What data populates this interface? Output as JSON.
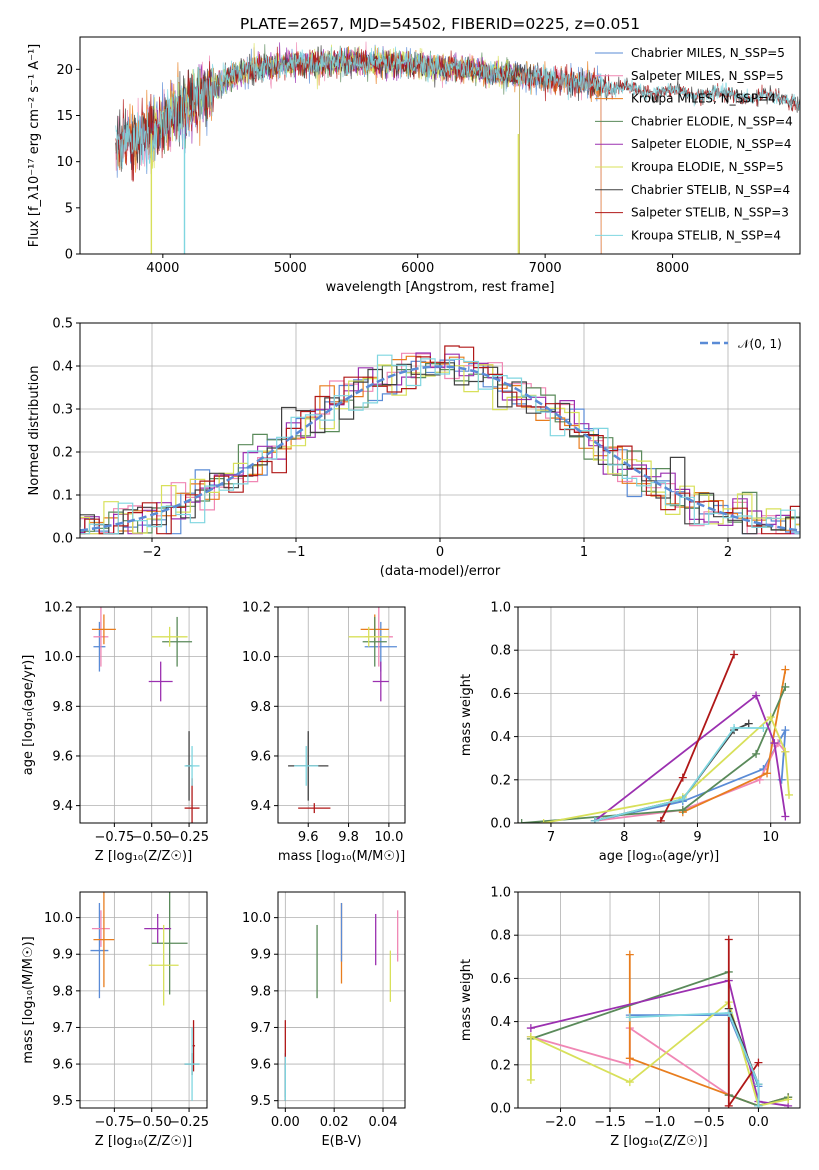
{
  "chart_data": [
    {
      "id": "spectrum",
      "type": "line",
      "title": "PLATE=2657, MJD=54502, FIBERID=0225, z=0.051",
      "xlabel": "wavelength [Angstrom, rest frame]",
      "ylabel": "Flux [f_λ10⁻¹⁷ erg cm⁻² s⁻¹ A⁻¹]",
      "xlim": [
        3350,
        9000
      ],
      "ylim": [
        0,
        23.5
      ],
      "xticks": [
        4000,
        5000,
        6000,
        7000,
        8000
      ],
      "yticks": [
        0,
        5,
        10,
        15,
        20
      ],
      "grid": false,
      "legend_position": "upper-right",
      "series": [
        {
          "name": "Chabrier MILES, N_SSP=5",
          "color": "#5a8bd6",
          "range": [
            3630,
            7440
          ]
        },
        {
          "name": "Salpeter MILES, N_SSP=5",
          "color": "#f087b4",
          "range": [
            3630,
            7440
          ]
        },
        {
          "name": "Kroupa MILES, N_SSP=4",
          "color": "#e87d1e",
          "range": [
            3630,
            7440
          ]
        },
        {
          "name": "Chabrier ELODIE, N_SSP=4",
          "color": "#5a8a5a",
          "range": [
            3900,
            6800
          ]
        },
        {
          "name": "Salpeter ELODIE, N_SSP=4",
          "color": "#9b30b0",
          "range": [
            3900,
            6800
          ]
        },
        {
          "name": "Kroupa ELODIE, N_SSP=5",
          "color": "#d8e05a",
          "range": [
            3900,
            6800
          ]
        },
        {
          "name": "Chabrier STELIB, N_SSP=4",
          "color": "#404040",
          "range": [
            3630,
            9000
          ]
        },
        {
          "name": "Salpeter STELIB, N_SSP=3",
          "color": "#b01818",
          "range": [
            3630,
            9000
          ]
        },
        {
          "name": "Kroupa STELIB, N_SSP=4",
          "color": "#7fd6e0",
          "range": [
            3630,
            9000
          ]
        }
      ],
      "continuum": [
        [
          3630,
          12
        ],
        [
          3800,
          12.5
        ],
        [
          3950,
          13.5
        ],
        [
          4100,
          15.5
        ],
        [
          4300,
          17
        ],
        [
          4500,
          19
        ],
        [
          4700,
          20
        ],
        [
          5000,
          20.6
        ],
        [
          5500,
          20.8
        ],
        [
          6000,
          20.5
        ],
        [
          6500,
          19.8
        ],
        [
          7000,
          19
        ],
        [
          7500,
          18
        ],
        [
          8000,
          17.5
        ],
        [
          8500,
          17.2
        ],
        [
          9000,
          16.5
        ]
      ]
    },
    {
      "id": "residuals",
      "type": "histogram",
      "xlabel": "(data-model)/error",
      "ylabel": "Normed distribution",
      "xlim": [
        -2.5,
        2.5
      ],
      "ylim": [
        0,
        0.5
      ],
      "xticks": [
        -2,
        -1,
        0,
        1,
        2
      ],
      "yticks": [
        0.0,
        0.1,
        0.2,
        0.3,
        0.4,
        0.5
      ],
      "grid": true,
      "legend_position": "upper-right",
      "reference": {
        "name": "𝒩(0, 1)",
        "color": "#5a8bd6"
      },
      "bin_width": 0.1
    },
    {
      "id": "age-vs-Z",
      "type": "scatter",
      "xlabel": "Z [log₁₀(Z/Z☉)]",
      "ylabel": "age  [log₁₀(age/yr)]",
      "xlim": [
        -0.98,
        -0.13
      ],
      "ylim": [
        9.33,
        10.2
      ],
      "xticks": [
        -0.75,
        -0.5,
        -0.25
      ],
      "xticklabels": [
        "−0.75",
        "−0.50",
        "−0.25"
      ],
      "yticks": [
        9.4,
        9.6,
        9.8,
        10.0,
        10.2
      ],
      "grid": true,
      "points": [
        {
          "x": -0.85,
          "y": 10.04,
          "xerr": 0.04,
          "yerr": 0.1,
          "color": "#5a8bd6"
        },
        {
          "x": -0.84,
          "y": 10.08,
          "xerr": 0.05,
          "yerr": 0.12,
          "color": "#f087b4"
        },
        {
          "x": -0.82,
          "y": 10.11,
          "xerr": 0.08,
          "yerr": 0.06,
          "color": "#e87d1e"
        },
        {
          "x": -0.33,
          "y": 10.06,
          "xerr": 0.1,
          "yerr": 0.1,
          "color": "#5a8a5a"
        },
        {
          "x": -0.44,
          "y": 9.9,
          "xerr": 0.08,
          "yerr": 0.08,
          "color": "#9b30b0"
        },
        {
          "x": -0.38,
          "y": 10.08,
          "xerr": 0.12,
          "yerr": 0.04,
          "color": "#d8e05a"
        },
        {
          "x": -0.25,
          "y": 9.56,
          "xerr": 0.02,
          "yerr": 0.14,
          "color": "#404040"
        },
        {
          "x": -0.23,
          "y": 9.39,
          "xerr": 0.05,
          "yerr": 0.12,
          "color": "#b01818"
        },
        {
          "x": -0.23,
          "y": 9.56,
          "xerr": 0.05,
          "yerr": 0.08,
          "color": "#7fd6e0"
        }
      ]
    },
    {
      "id": "age-vs-mass",
      "type": "scatter",
      "xlabel": "mass [log₁₀(M/M☉)]",
      "ylabel": "",
      "xlim": [
        9.45,
        10.08
      ],
      "ylim": [
        9.33,
        10.2
      ],
      "xticks": [
        9.6,
        9.8,
        10.0
      ],
      "xticklabels": [
        "9.6",
        "9.8",
        "10.0"
      ],
      "yticks": [
        9.4,
        9.6,
        9.8,
        10.0,
        10.2
      ],
      "grid": true,
      "points": [
        {
          "x": 9.96,
          "y": 10.04,
          "xerr": 0.08,
          "yerr": 0.1,
          "color": "#5a8bd6"
        },
        {
          "x": 9.95,
          "y": 10.08,
          "xerr": 0.07,
          "yerr": 0.12,
          "color": "#f087b4"
        },
        {
          "x": 9.93,
          "y": 10.11,
          "xerr": 0.07,
          "yerr": 0.06,
          "color": "#e87d1e"
        },
        {
          "x": 9.93,
          "y": 10.06,
          "xerr": 0.06,
          "yerr": 0.1,
          "color": "#5a8a5a"
        },
        {
          "x": 9.96,
          "y": 9.9,
          "xerr": 0.04,
          "yerr": 0.08,
          "color": "#9b30b0"
        },
        {
          "x": 9.9,
          "y": 10.08,
          "xerr": 0.1,
          "yerr": 0.04,
          "color": "#d8e05a"
        },
        {
          "x": 9.6,
          "y": 9.56,
          "xerr": 0.1,
          "yerr": 0.14,
          "color": "#404040"
        },
        {
          "x": 9.63,
          "y": 9.39,
          "xerr": 0.08,
          "yerr": 0.02,
          "color": "#b01818"
        },
        {
          "x": 9.59,
          "y": 9.56,
          "xerr": 0.06,
          "yerr": 0.08,
          "color": "#7fd6e0"
        }
      ]
    },
    {
      "id": "weight-vs-age",
      "type": "line",
      "xlabel": "age  [log₁₀(age/yr)]",
      "ylabel": "mass weight",
      "xlim": [
        6.55,
        10.4
      ],
      "ylim": [
        0,
        1.0
      ],
      "xticks": [
        7,
        8,
        9,
        10
      ],
      "yticks": [
        0.0,
        0.2,
        0.4,
        0.6,
        0.8,
        1.0
      ],
      "grid": true,
      "series": [
        {
          "color": "#5a8bd6",
          "points": [
            [
              7.6,
              0.01
            ],
            [
              8.8,
              0.1
            ],
            [
              9.9,
              0.25
            ],
            [
              10.2,
              0.43
            ],
            [
              10.15,
              0.2
            ]
          ]
        },
        {
          "color": "#f087b4",
          "points": [
            [
              7.6,
              0.01
            ],
            [
              8.8,
              0.06
            ],
            [
              9.85,
              0.2
            ],
            [
              10.1,
              0.37
            ],
            [
              10.2,
              0.33
            ]
          ]
        },
        {
          "color": "#e87d1e",
          "points": [
            [
              8.8,
              0.05
            ],
            [
              9.95,
              0.23
            ],
            [
              10.2,
              0.71
            ]
          ]
        },
        {
          "color": "#5a8a5a",
          "points": [
            [
              6.6,
              0.0
            ],
            [
              8.8,
              0.06
            ],
            [
              9.8,
              0.32
            ],
            [
              10.2,
              0.63
            ]
          ]
        },
        {
          "color": "#9b30b0",
          "points": [
            [
              7.6,
              0.01
            ],
            [
              9.8,
              0.59
            ],
            [
              10.05,
              0.37
            ],
            [
              10.2,
              0.03
            ]
          ]
        },
        {
          "color": "#d8e05a",
          "points": [
            [
              6.9,
              0.0
            ],
            [
              8.8,
              0.12
            ],
            [
              10.0,
              0.49
            ],
            [
              10.2,
              0.33
            ],
            [
              10.25,
              0.13
            ]
          ]
        },
        {
          "color": "#404040",
          "points": [
            [
              7.6,
              0.01
            ],
            [
              8.8,
              0.11
            ],
            [
              9.5,
              0.43
            ],
            [
              9.7,
              0.46
            ]
          ]
        },
        {
          "color": "#b01818",
          "points": [
            [
              8.5,
              0.01
            ],
            [
              8.8,
              0.21
            ],
            [
              9.5,
              0.78
            ]
          ]
        },
        {
          "color": "#7fd6e0",
          "points": [
            [
              7.6,
              0.01
            ],
            [
              8.8,
              0.11
            ],
            [
              9.5,
              0.44
            ],
            [
              9.9,
              0.44
            ]
          ]
        }
      ]
    },
    {
      "id": "mass-vs-Z",
      "type": "scatter",
      "xlabel": "Z [log₁₀(Z/Z☉)]",
      "ylabel": "mass [log₁₀(M/M☉)]",
      "xlim": [
        -0.98,
        -0.13
      ],
      "ylim": [
        9.48,
        10.07
      ],
      "xticks": [
        -0.75,
        -0.5,
        -0.25
      ],
      "xticklabels": [
        "−0.75",
        "−0.50",
        "−0.25"
      ],
      "yticks": [
        9.5,
        9.6,
        9.7,
        9.8,
        9.9,
        10.0
      ],
      "grid": true,
      "points": [
        {
          "x": -0.85,
          "y": 9.91,
          "xerr": 0.06,
          "yerr": 0.13,
          "color": "#5a8bd6"
        },
        {
          "x": -0.84,
          "y": 9.97,
          "xerr": 0.06,
          "yerr": 0.05,
          "color": "#f087b4"
        },
        {
          "x": -0.82,
          "y": 9.94,
          "xerr": 0.07,
          "yerr": 0.13,
          "color": "#e87d1e"
        },
        {
          "x": -0.38,
          "y": 9.93,
          "xerr": 0.12,
          "yerr": 0.14,
          "color": "#5a8a5a"
        },
        {
          "x": -0.46,
          "y": 9.97,
          "xerr": 0.09,
          "yerr": 0.04,
          "color": "#9b30b0"
        },
        {
          "x": -0.42,
          "y": 9.87,
          "xerr": 0.1,
          "yerr": 0.11,
          "color": "#d8e05a"
        },
        {
          "x": -0.23,
          "y": 9.6,
          "xerr": 0.05,
          "yerr": 0.03,
          "color": "#404040"
        },
        {
          "x": -0.22,
          "y": 9.65,
          "xerr": 0.01,
          "yerr": 0.07,
          "color": "#b01818"
        },
        {
          "x": -0.23,
          "y": 9.6,
          "xerr": 0.05,
          "yerr": 0.1,
          "color": "#7fd6e0"
        }
      ]
    },
    {
      "id": "mass-vs-EBV",
      "type": "scatter",
      "xlabel": "E(B-V)",
      "ylabel": "",
      "xlim": [
        -0.003,
        0.049
      ],
      "ylim": [
        9.48,
        10.07
      ],
      "xticks": [
        0.0,
        0.02,
        0.04
      ],
      "xticklabels": [
        "0.00",
        "0.02",
        "0.04"
      ],
      "yticks": [
        9.5,
        9.6,
        9.7,
        9.8,
        9.9,
        10.0
      ],
      "grid": true,
      "points": [
        {
          "x": 0.0,
          "y": 9.57,
          "xerr": 0,
          "yerr": 0.06,
          "color": "#5a8bd6"
        },
        {
          "x": 0.046,
          "y": 9.95,
          "xerr": 0,
          "yerr": 0.07,
          "color": "#f087b4"
        },
        {
          "x": 0.023,
          "y": 9.93,
          "xerr": 0,
          "yerr": 0.11,
          "color": "#e87d1e"
        },
        {
          "x": 0.013,
          "y": 9.88,
          "xerr": 0,
          "yerr": 0.1,
          "color": "#5a8a5a"
        },
        {
          "x": 0.037,
          "y": 9.94,
          "xerr": 0,
          "yerr": 0.07,
          "color": "#9b30b0"
        },
        {
          "x": 0.043,
          "y": 9.84,
          "xerr": 0,
          "yerr": 0.07,
          "color": "#d8e05a"
        },
        {
          "x": 0.0,
          "y": 9.55,
          "xerr": 0,
          "yerr": 0.05,
          "color": "#404040"
        },
        {
          "x": 0.0,
          "y": 9.66,
          "xerr": 0,
          "yerr": 0.06,
          "color": "#b01818"
        },
        {
          "x": 0.0,
          "y": 9.56,
          "xerr": 0,
          "yerr": 0.06,
          "color": "#7fd6e0"
        },
        {
          "x": 0.023,
          "y": 9.96,
          "xerr": 0,
          "yerr": 0.08,
          "color": "#5a8bd6"
        }
      ]
    },
    {
      "id": "weight-vs-Z",
      "type": "line",
      "xlabel": "Z [log₁₀(Z/Z☉)]",
      "ylabel": "mass weight",
      "xlim": [
        -2.43,
        0.42
      ],
      "ylim": [
        0,
        1.0
      ],
      "xticks": [
        -2.0,
        -1.5,
        -1.0,
        -0.5,
        0.0
      ],
      "xticklabels": [
        "−2.0",
        "−1.5",
        "−1.0",
        "−0.5",
        "0.0"
      ],
      "yticks": [
        0.0,
        0.2,
        0.4,
        0.6,
        0.8,
        1.0
      ],
      "grid": true,
      "series": [
        {
          "color": "#5a8bd6",
          "points": [
            [
              -1.3,
              0.43
            ],
            [
              -0.3,
              0.43
            ],
            [
              0.0,
              0.1
            ],
            [
              0.0,
              0.01
            ],
            [
              0.3,
              0.05
            ]
          ]
        },
        {
          "color": "#f087b4",
          "points": [
            [
              -2.3,
              0.33
            ],
            [
              -1.3,
              0.2
            ],
            [
              -1.3,
              0.37
            ],
            [
              -0.3,
              0.06
            ],
            [
              0.0,
              0.01
            ]
          ]
        },
        {
          "color": "#e87d1e",
          "points": [
            [
              -1.3,
              0.71
            ],
            [
              -1.3,
              0.23
            ],
            [
              0.0,
              0.01
            ],
            [
              0.3,
              0.05
            ]
          ]
        },
        {
          "color": "#5a8a5a",
          "points": [
            [
              -2.3,
              0.32
            ],
            [
              -0.3,
              0.63
            ],
            [
              -0.3,
              0.06
            ],
            [
              0.0,
              0.01
            ],
            [
              0.3,
              0.05
            ]
          ]
        },
        {
          "color": "#9b30b0",
          "points": [
            [
              -2.3,
              0.37
            ],
            [
              -0.3,
              0.59
            ],
            [
              0.0,
              0.03
            ],
            [
              0.3,
              0.01
            ]
          ]
        },
        {
          "color": "#d8e05a",
          "points": [
            [
              -2.3,
              0.13
            ],
            [
              -2.3,
              0.33
            ],
            [
              -1.3,
              0.12
            ],
            [
              -0.3,
              0.49
            ],
            [
              0.0,
              0.01
            ],
            [
              0.3,
              0.04
            ]
          ]
        },
        {
          "color": "#404040",
          "points": [
            [
              -0.3,
              0.46
            ],
            [
              0.0,
              0.11
            ],
            [
              0.0,
              0.01
            ]
          ]
        },
        {
          "color": "#b01818",
          "points": [
            [
              -0.3,
              0.78
            ],
            [
              -0.3,
              0.01
            ],
            [
              0.0,
              0.21
            ]
          ]
        },
        {
          "color": "#7fd6e0",
          "points": [
            [
              -1.3,
              0.42
            ],
            [
              -0.3,
              0.44
            ],
            [
              0.0,
              0.11
            ],
            [
              0.0,
              0.01
            ]
          ]
        }
      ]
    }
  ]
}
